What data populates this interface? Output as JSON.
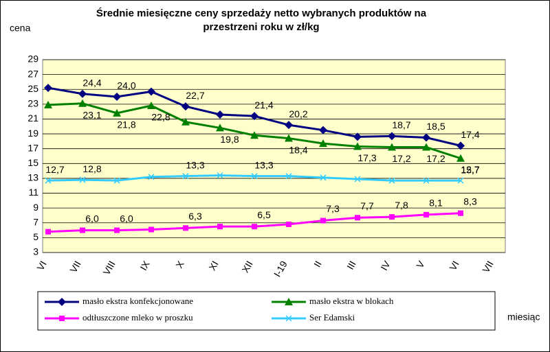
{
  "chart_data": {
    "type": "line",
    "title": [
      "Średnie miesięczne ceny sprzedaży netto  wybranych produktów na",
      "przestrzeni roku w zł/kg"
    ],
    "y_label": "cena",
    "x_label": "miesiąc",
    "categories": [
      "VI",
      "VII",
      "VIII",
      "IX",
      "X",
      "XI",
      "XII",
      "I-19",
      "II",
      "III",
      "IV",
      "V",
      "VI",
      "VII"
    ],
    "ylim": [
      3,
      29
    ],
    "yticks": [
      3,
      5,
      7,
      9,
      11,
      13,
      15,
      17,
      19,
      21,
      23,
      25,
      27,
      29
    ],
    "grid": true,
    "series": [
      {
        "name": "masło ekstra konfekcjonowane",
        "color": "#000080",
        "marker": "diamond",
        "values": [
          25.2,
          24.4,
          24.0,
          24.7,
          22.7,
          21.6,
          21.4,
          20.2,
          19.5,
          18.6,
          18.7,
          18.5,
          17.4,
          null
        ],
        "value_labels": [
          null,
          "24,4",
          "24,0",
          null,
          "22,7",
          null,
          "21,4",
          "20,2",
          null,
          null,
          "18,7",
          "18,5",
          "17,4",
          null
        ]
      },
      {
        "name": "masło ekstra w blokach",
        "color": "#008000",
        "marker": "triangle",
        "values": [
          22.9,
          23.1,
          21.8,
          22.8,
          20.6,
          19.8,
          18.8,
          18.4,
          17.7,
          17.3,
          17.2,
          17.2,
          15.7,
          null
        ],
        "value_labels": [
          null,
          "23,1",
          "21,8",
          "22,8",
          null,
          "19,8",
          null,
          "18,4",
          null,
          "17,3",
          "17,2",
          "17,2",
          "15,7",
          null
        ]
      },
      {
        "name": "odtłuszczone mleko w proszku",
        "color": "#ff00ff",
        "marker": "square",
        "values": [
          5.8,
          6.0,
          6.0,
          6.1,
          6.3,
          6.5,
          6.5,
          6.8,
          7.3,
          7.7,
          7.8,
          8.1,
          8.3,
          null
        ],
        "value_labels": [
          null,
          "6,0",
          "6,0",
          null,
          "6,3",
          null,
          "6,5",
          null,
          "7,3",
          "7,7",
          "7,8",
          "8,1",
          "8,3",
          null
        ]
      },
      {
        "name": "Ser Edamski",
        "color": "#33ccff",
        "marker": "x",
        "values": [
          12.7,
          12.8,
          12.7,
          13.2,
          13.3,
          13.4,
          13.3,
          13.3,
          13.1,
          12.9,
          12.7,
          12.7,
          12.7,
          null
        ],
        "value_labels": [
          "12,7",
          "12,8",
          null,
          null,
          "13,3",
          null,
          "13,3",
          null,
          null,
          null,
          null,
          null,
          "12,7",
          null
        ]
      }
    ]
  }
}
